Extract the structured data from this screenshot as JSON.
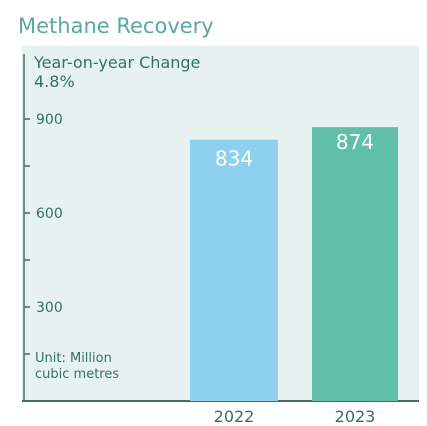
{
  "title": "Methane Recovery",
  "subtitle": "Year-on-year Change",
  "subtitle_value": "4.8%",
  "unit_label_line1": "Unit: Million",
  "unit_label_line2": "cubic metres",
  "colors": {
    "title": "#5aa8a0",
    "panel_bg": "#e6f2ef",
    "text": "#3a6e68",
    "bar_2022": "#8fd0ef",
    "bar_2023": "#5fbfa8",
    "axis": "#4a6a66"
  },
  "chart_data": {
    "type": "bar",
    "title": "Methane Recovery",
    "categories": [
      "2022",
      "2023"
    ],
    "values": [
      834,
      874
    ],
    "value_labels": [
      "834",
      "874"
    ],
    "ylim": [
      0,
      900
    ],
    "yticks": [
      300,
      600,
      900
    ],
    "minor_ticks": [
      150,
      450,
      750
    ],
    "ylabel": "Unit: Million cubic metres",
    "grid": false
  }
}
